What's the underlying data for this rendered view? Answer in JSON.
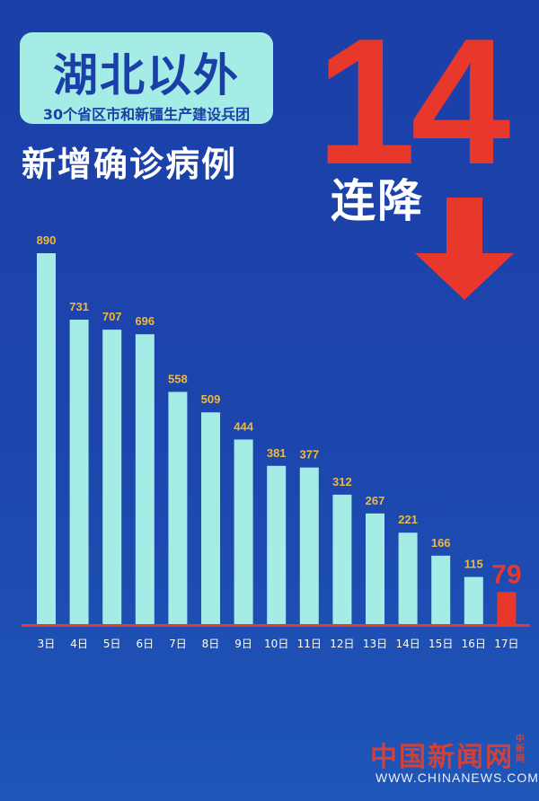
{
  "header": {
    "title": "湖北以外",
    "subtitle": "30个省区市和新疆生产建设兵团",
    "heading": "新增确诊病例",
    "streak_number": "14",
    "streak_label": "连降"
  },
  "colors": {
    "background": "#1b3fa8",
    "bar": "#a6ece6",
    "highlight_bar": "#e8382c",
    "value_label": "#f0b93a",
    "baseline": "#e8382c"
  },
  "chart_data": {
    "type": "bar",
    "categories": [
      "3日",
      "4日",
      "5日",
      "6日",
      "7日",
      "8日",
      "9日",
      "10日",
      "11日",
      "12日",
      "13日",
      "14日",
      "15日",
      "16日",
      "17日"
    ],
    "values": [
      890,
      731,
      707,
      696,
      558,
      509,
      444,
      381,
      377,
      312,
      267,
      221,
      166,
      115,
      79
    ],
    "highlight_index": 14,
    "ylim": [
      0,
      890
    ],
    "grid": false,
    "legend": "none"
  },
  "watermark": {
    "brand": "中国新闻网",
    "side_text": "中新网",
    "url": "WWW.CHINANEWS.COM"
  }
}
